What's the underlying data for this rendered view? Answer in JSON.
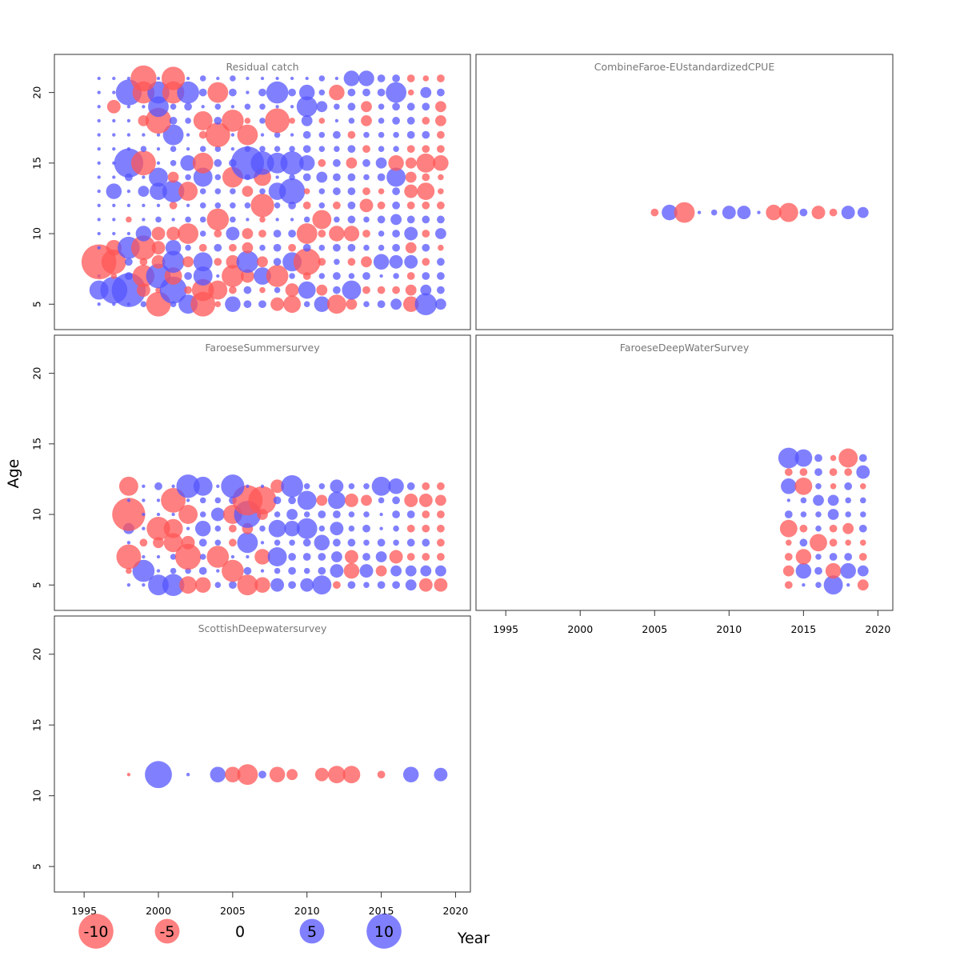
{
  "chart_data": {
    "type": "scatter",
    "subtype": "bubble",
    "xlabel": "Year",
    "ylabel": "Age",
    "xlim": [
      1993,
      2021
    ],
    "ylim": [
      3.2,
      22.7
    ],
    "x_ticks": [
      1995,
      2000,
      2005,
      2010,
      2015,
      2020
    ],
    "y_ticks": [
      5,
      10,
      15,
      20
    ],
    "colors": {
      "positive": "#5555ff",
      "negative": "#ff5555",
      "opacity": 0.75
    },
    "legend": {
      "placement": "bottom",
      "values": [
        -10,
        -5,
        0,
        5,
        10
      ],
      "labels": [
        "-10",
        "-5",
        "0",
        "5",
        "10"
      ]
    },
    "panels": [
      {
        "name": "Residual catch",
        "title": "Residual catch",
        "ages": [
          5,
          6,
          7,
          8,
          9,
          10,
          11,
          12,
          13,
          14,
          15,
          16,
          17,
          18,
          19,
          20,
          21
        ],
        "years": [
          1996,
          1997,
          1998,
          1999,
          2000,
          2001,
          2002,
          2003,
          2004,
          2005,
          2006,
          2007,
          2008,
          2009,
          2010,
          2011,
          2012,
          2013,
          2014,
          2015,
          2016,
          2017,
          2018,
          2019
        ],
        "residuals": [
          [
            0.1,
            0.1,
            0.1,
            0.3,
            -5.0,
            0.3,
            3.0,
            -5.0,
            -0.3,
            2.0,
            0.5,
            0.5,
            -1.5,
            -2.5,
            0.3,
            2.0,
            -3.0,
            -1.0,
            0.3,
            0.5,
            1.0,
            -2.0,
            4.0,
            1.0
          ],
          [
            3.0,
            6.0,
            9.5,
            -1.5,
            -0.3,
            6.0,
            -0.5,
            -4.0,
            -3.0,
            -0.5,
            0.5,
            -0.3,
            0.3,
            -1.5,
            2.5,
            -1.0,
            0.5,
            3.0,
            -0.5,
            -0.5,
            -0.5,
            -1.0,
            1.0,
            0.5
          ],
          [
            0.1,
            -0.3,
            0.5,
            -4.0,
            5.0,
            -2.5,
            0.5,
            3.0,
            0.1,
            -4.0,
            -1.5,
            2.5,
            -4.0,
            0.3,
            -0.5,
            0.3,
            0.5,
            0.3,
            0.5,
            0.1,
            0.3,
            -0.5,
            0.5,
            0.5
          ],
          [
            -10.0,
            -5.0,
            0.5,
            -0.5,
            -1.5,
            4.0,
            -1.0,
            3.0,
            -0.5,
            -1.5,
            4.0,
            -1.0,
            0.5,
            3.0,
            -6.0,
            -0.5,
            0.3,
            -0.5,
            -1.0,
            2.0,
            1.5,
            1.5,
            -0.5,
            0.5
          ],
          [
            0.1,
            -2.0,
            4.0,
            -5.0,
            -1.5,
            2.0,
            0.3,
            -0.5,
            0.5,
            -0.5,
            -1.0,
            0.3,
            0.5,
            -0.5,
            0.5,
            0.3,
            0.5,
            0.5,
            0.3,
            0.3,
            0.5,
            -1.0,
            0.5,
            -0.3
          ],
          [
            0.1,
            0.1,
            0.1,
            2.0,
            -1.5,
            -1.5,
            -3.5,
            0.3,
            -0.5,
            1.5,
            -1.0,
            -0.5,
            0.5,
            0.5,
            -3.5,
            -0.5,
            -2.0,
            -2.0,
            -0.5,
            0.3,
            0.5,
            1.5,
            -0.5,
            1.0
          ],
          [
            0.1,
            0.1,
            -0.3,
            0.1,
            0.3,
            0.1,
            0.3,
            0.3,
            -4.0,
            0.3,
            0.1,
            -0.3,
            0.1,
            0.1,
            0.3,
            -3.0,
            0.3,
            0.5,
            0.3,
            0.5,
            1.0,
            0.5,
            0.5,
            0.5
          ],
          [
            0.1,
            0.1,
            0.1,
            0.1,
            0.1,
            -0.5,
            0.1,
            0.3,
            0.3,
            0.3,
            0.3,
            -4.5,
            0.3,
            0.5,
            -0.5,
            0.3,
            -0.5,
            0.5,
            -1.5,
            -0.5,
            0.5,
            -0.5,
            -0.5,
            -0.5
          ],
          [
            0.1,
            2.0,
            0.1,
            1.0,
            2.5,
            4.0,
            -3.0,
            0.3,
            0.3,
            0.3,
            -1.0,
            0.3,
            2.5,
            5.5,
            -0.3,
            0.3,
            0.5,
            0.5,
            -0.5,
            -0.3,
            0.5,
            -1.5,
            -2.5,
            -0.3
          ],
          [
            0.1,
            0.1,
            0.5,
            0.1,
            3.0,
            -1.0,
            0.3,
            3.0,
            0.3,
            -3.5,
            0.3,
            -2.5,
            0.1,
            0.3,
            0.5,
            1.0,
            0.5,
            0.5,
            0.3,
            0.5,
            3.0,
            -1.0,
            -0.5,
            -0.3
          ],
          [
            0.1,
            0.1,
            7.0,
            -5.0,
            0.1,
            0.3,
            2.0,
            -3.5,
            0.5,
            0.5,
            9.0,
            4.5,
            3.5,
            4.5,
            2.0,
            -0.5,
            0.5,
            -1.0,
            0.5,
            1.0,
            -2.0,
            -1.0,
            -3.0,
            -2.0
          ],
          [
            0.1,
            0.1,
            0.1,
            0.3,
            0.1,
            0.3,
            0.1,
            0.3,
            0.3,
            0.1,
            0.3,
            0.3,
            0.3,
            0.3,
            0.5,
            0.3,
            0.3,
            0.5,
            -0.5,
            0.3,
            0.3,
            -0.5,
            -0.5,
            -0.5
          ],
          [
            0.1,
            0.1,
            0.1,
            0.1,
            0.1,
            3.5,
            0.1,
            -0.5,
            -5.0,
            0.1,
            -3.5,
            0.1,
            0.3,
            0.1,
            0.5,
            0.3,
            0.5,
            -0.5,
            0.3,
            0.3,
            0.3,
            0.5,
            0.5,
            -0.5
          ],
          [
            0.1,
            0.1,
            0.1,
            -1.0,
            -5.5,
            0.5,
            0.3,
            -3.0,
            0.5,
            -4.0,
            -0.3,
            0.3,
            -5.0,
            -0.3,
            1.0,
            -0.3,
            0.1,
            0.3,
            -1.0,
            0.3,
            0.5,
            0.5,
            -0.5,
            -1.0
          ],
          [
            0.1,
            -1.5,
            0.1,
            0.1,
            3.5,
            0.3,
            0.5,
            0.1,
            0.3,
            0.1,
            0.3,
            0.3,
            0.1,
            0.1,
            3.5,
            1.0,
            0.3,
            0.5,
            -1.0,
            0.3,
            0.5,
            0.5,
            0.5,
            -1.0
          ],
          [
            0.1,
            0.1,
            5.5,
            -4.0,
            4.0,
            -4.0,
            4.0,
            0.5,
            -3.5,
            0.5,
            0.1,
            0.5,
            4.0,
            0.5,
            2.0,
            0.3,
            -2.0,
            0.5,
            0.5,
            0.5,
            3.5,
            -0.3,
            1.0,
            0.5
          ],
          [
            0.1,
            0.1,
            0.1,
            -5.5,
            0.1,
            -4.5,
            0.1,
            0.3,
            0.1,
            0.3,
            0.1,
            0.1,
            0.1,
            0.1,
            0.1,
            0.3,
            0.1,
            2.0,
            2.0,
            0.5,
            0.5,
            -0.5,
            -0.3,
            -0.5
          ]
        ]
      },
      {
        "name": "CombineFaroe-EUstandardizedCPUE",
        "title": "CombineFaroe-EUstandardizedCPUE",
        "ages": [
          11.5
        ],
        "years": [
          2005,
          2006,
          2007,
          2008,
          2009,
          2010,
          2011,
          2012,
          2013,
          2014,
          2015,
          2016,
          2017,
          2018,
          2019
        ],
        "residuals": [
          [
            -0.5,
            2.0,
            -3.5,
            0.1,
            0.3,
            1.5,
            1.5,
            0.1,
            -2.0,
            -3.0,
            0.5,
            -1.5,
            -0.5,
            1.5,
            1.0
          ]
        ]
      },
      {
        "name": "FaroeseSummersurvey",
        "title": "FaroeseSummersurvey",
        "ages": [
          5,
          6,
          7,
          8,
          9,
          10,
          11,
          12
        ],
        "years": [
          1998,
          1999,
          2000,
          2001,
          2002,
          2003,
          2004,
          2005,
          2006,
          2007,
          2008,
          2009,
          2010,
          2011,
          2012,
          2013,
          2014,
          2015,
          2016,
          2017,
          2018,
          2019
        ],
        "residuals": [
          [
            0.1,
            0.1,
            3.5,
            4.0,
            -2.5,
            -2.0,
            0.3,
            0.5,
            -3.5,
            -2.0,
            1.5,
            0.5,
            1.5,
            3.0,
            -0.5,
            0.5,
            0.3,
            0.5,
            0.5,
            1.0,
            -1.5,
            -1.5
          ],
          [
            -0.3,
            4.0,
            0.1,
            0.3,
            0.3,
            0.5,
            0.1,
            -4.0,
            0.5,
            0.1,
            0.3,
            0.5,
            0.3,
            0.5,
            1.5,
            -2.0,
            1.5,
            -1.0,
            1.0,
            1.0,
            1.0,
            1.0
          ],
          [
            -5.0,
            0.1,
            0.1,
            0.3,
            -5.5,
            0.3,
            -4.0,
            0.1,
            0.1,
            -2.0,
            3.0,
            0.5,
            0.5,
            0.5,
            1.0,
            -1.5,
            0.5,
            1.0,
            -1.5,
            -0.5,
            -0.5,
            -0.5
          ],
          [
            0.1,
            -0.5,
            -1.0,
            -3.0,
            -1.5,
            0.5,
            0.3,
            -0.5,
            3.5,
            0.1,
            0.3,
            0.3,
            0.5,
            2.0,
            0.5,
            0.5,
            0.3,
            0.5,
            0.3,
            0.5,
            0.5,
            -0.5
          ],
          [
            1.0,
            0.1,
            -4.5,
            -3.0,
            0.1,
            2.0,
            0.3,
            -0.5,
            -1.0,
            0.3,
            2.5,
            2.0,
            3.5,
            0.3,
            1.5,
            0.3,
            0.5,
            0.1,
            0.3,
            -0.5,
            -0.5,
            -0.5
          ],
          [
            -9.0,
            0.1,
            0.1,
            0.1,
            -3.0,
            0.3,
            1.5,
            -3.0,
            6.0,
            -1.0,
            0.3,
            1.0,
            0.3,
            0.5,
            0.5,
            0.3,
            0.3,
            0.1,
            0.5,
            0.5,
            -0.5,
            -0.5
          ],
          [
            0.1,
            0.1,
            0.1,
            -5.0,
            0.1,
            0.3,
            0.3,
            0.5,
            -7.5,
            -6.5,
            0.5,
            0.5,
            3.0,
            -1.0,
            2.5,
            -1.5,
            -1.0,
            0.3,
            0.5,
            -1.5,
            -1.5,
            -1.0
          ],
          [
            -3.0,
            0.1,
            0.5,
            0.1,
            4.5,
            3.0,
            0.1,
            4.5,
            0.1,
            0.1,
            -1.5,
            4.0,
            0.3,
            0.3,
            1.5,
            0.3,
            0.3,
            3.0,
            2.0,
            0.5,
            -0.5,
            -0.5
          ]
        ]
      },
      {
        "name": "FaroeseDeepWaterSurvey",
        "title": "FaroeseDeepWaterSurvey",
        "ages": [
          5,
          6,
          7,
          8,
          9,
          10,
          11,
          12,
          13,
          14
        ],
        "years": [
          2014,
          2015,
          2016,
          2017,
          2018,
          2019
        ],
        "residuals": [
          [
            -0.5,
            0.1,
            0.3,
            3.0,
            0.1,
            -1.0
          ],
          [
            -1.0,
            2.0,
            0.5,
            -2.0,
            2.0,
            1.0
          ],
          [
            -0.5,
            -2.0,
            0.3,
            0.5,
            0.5,
            -0.5
          ],
          [
            -0.3,
            0.5,
            -2.5,
            -0.5,
            -0.3,
            -0.3
          ],
          [
            -2.5,
            -0.5,
            0.3,
            -0.5,
            -1.0,
            0.5
          ],
          [
            0.5,
            0.3,
            0.3,
            1.0,
            0.3,
            0.3
          ],
          [
            0.1,
            0.3,
            1.0,
            1.0,
            0.3,
            0.3
          ],
          [
            2.0,
            -2.5,
            0.3,
            -0.3,
            0.5,
            -0.3
          ],
          [
            -0.5,
            -0.5,
            0.5,
            -0.5,
            -0.5,
            1.5
          ],
          [
            3.5,
            2.5,
            0.5,
            -0.3,
            -3.0,
            0.5
          ]
        ]
      },
      {
        "name": "ScottishDeepwatersurvey",
        "title": "ScottishDeepwatersurvey",
        "ages": [
          11.5
        ],
        "years": [
          1998,
          2000,
          2002,
          2004,
          2005,
          2006,
          2007,
          2008,
          2009,
          2011,
          2012,
          2013,
          2015,
          2017,
          2019
        ],
        "residuals": [
          [
            -0.1,
            6.0,
            0.1,
            2.0,
            -2.0,
            -3.5,
            0.5,
            -2.0,
            -1.0,
            -1.5,
            -2.5,
            -2.5,
            -0.5,
            2.0,
            1.5
          ]
        ]
      }
    ]
  }
}
